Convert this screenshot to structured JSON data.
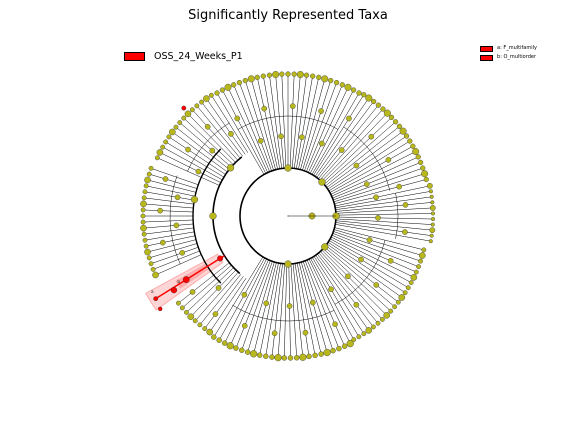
{
  "chart_data": {
    "type": "cladogram",
    "title": "Significantly Represented Taxa",
    "legend": {
      "group_label": "OSS_24_Weeks_P1",
      "group_color": "#ff0000",
      "taxa": [
        {
          "key": "a",
          "name": "F_multifamily"
        },
        {
          "key": "b",
          "name": "O_multiorder"
        }
      ]
    },
    "node_color": "#b8b81c",
    "highlight_color": "#ff0000",
    "highlighted_labels": [
      "a",
      "b"
    ]
  }
}
